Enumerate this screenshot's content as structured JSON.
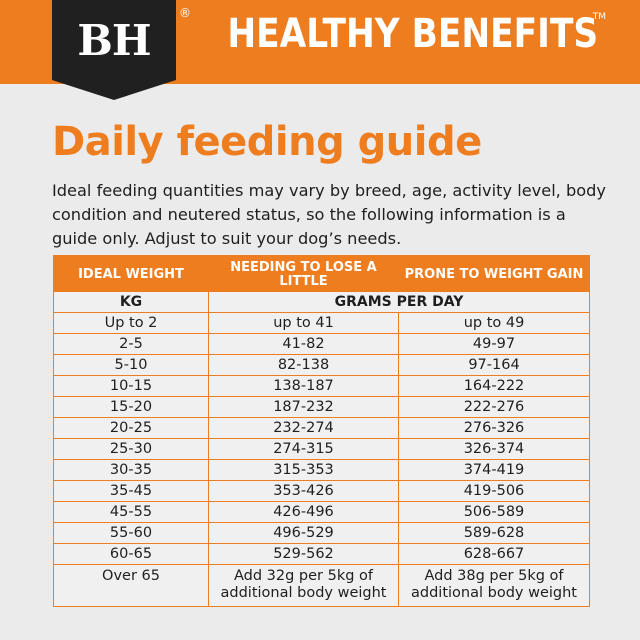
{
  "header": {
    "logo": "BH",
    "registered": "®",
    "title": "HEALTHY BENEFITS",
    "trademark": "TM"
  },
  "title": "Daily feeding guide",
  "intro": "Ideal feeding quantities may vary by breed, age, activity level, body condition and neutered status, so the following information is a guide only. Adjust to suit your dog’s needs.",
  "table": {
    "headers": [
      "IDEAL WEIGHT",
      "NEEDING TO LOSE A LITTLE",
      "PRONE TO WEIGHT GAIN"
    ],
    "units": [
      "KG",
      "GRAMS PER DAY"
    ],
    "rows": [
      [
        "Up to 2",
        "up to 41",
        "up to 49"
      ],
      [
        "2-5",
        "41-82",
        "49-97"
      ],
      [
        "5-10",
        "82-138",
        "97-164"
      ],
      [
        "10-15",
        "138-187",
        "164-222"
      ],
      [
        "15-20",
        "187-232",
        "222-276"
      ],
      [
        "20-25",
        "232-274",
        "276-326"
      ],
      [
        "25-30",
        "274-315",
        "326-374"
      ],
      [
        "30-35",
        "315-353",
        "374-419"
      ],
      [
        "35-45",
        "353-426",
        "419-506"
      ],
      [
        "45-55",
        "426-496",
        "506-589"
      ],
      [
        "55-60",
        "496-529",
        "589-628"
      ],
      [
        "60-65",
        "529-562",
        "628-667"
      ],
      [
        "Over 65",
        "Add 32g per 5kg of additional body weight",
        "Add 38g per 5kg of additional body weight"
      ]
    ]
  },
  "colors": {
    "accent": "#ee7d1f",
    "badge": "#202020",
    "background": "#ebebeb"
  }
}
